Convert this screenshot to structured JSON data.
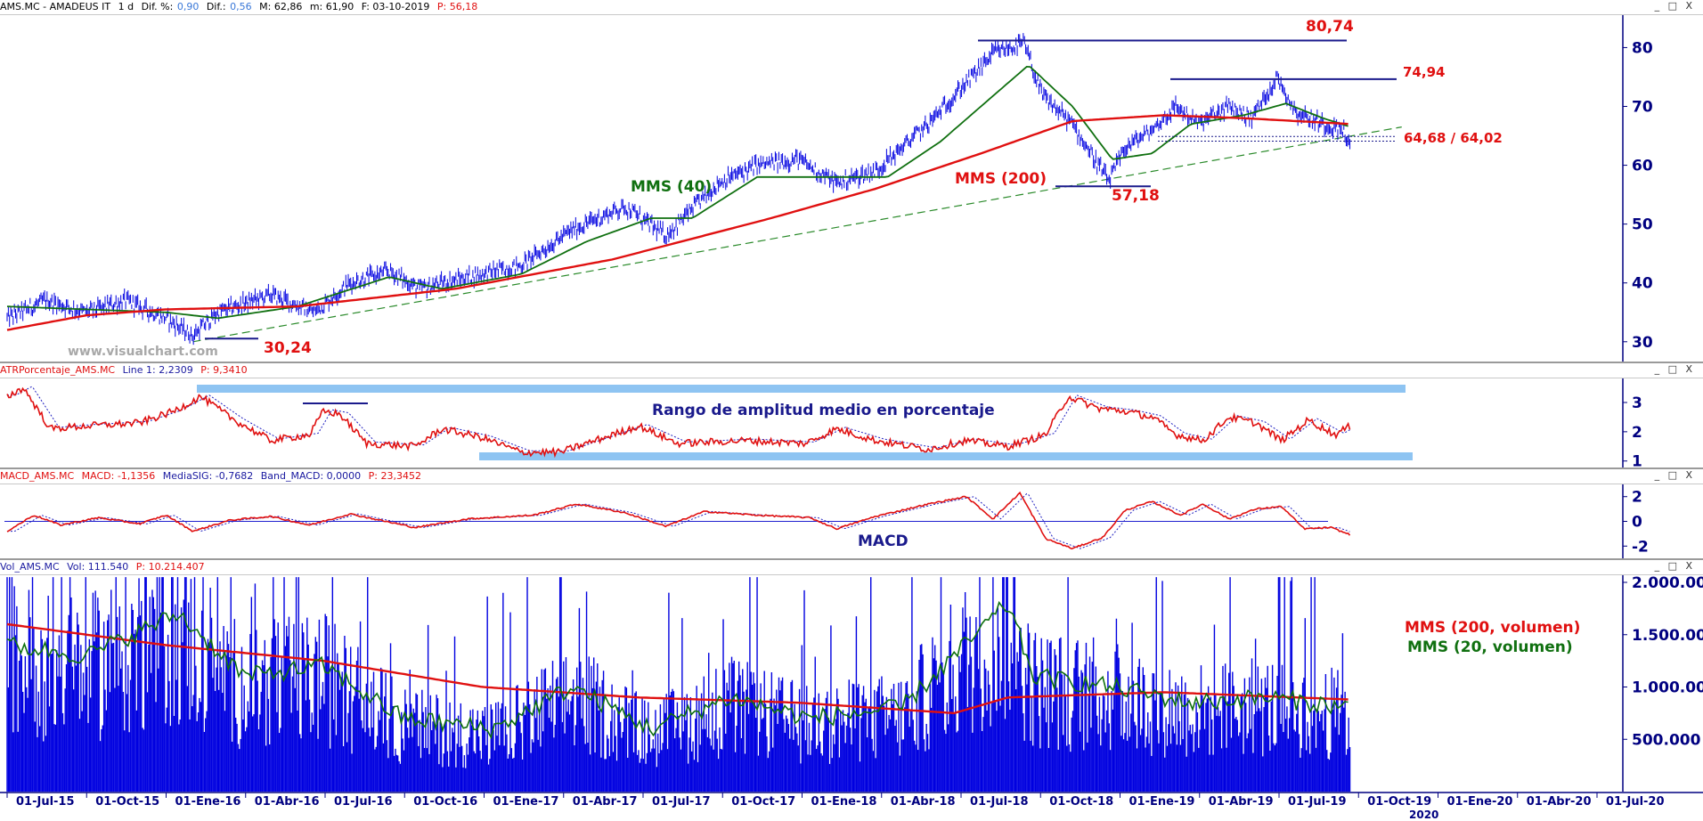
{
  "colors": {
    "price": "#0000e0",
    "mms40": "#107010",
    "mms200": "#e01010",
    "annotation_red": "#e01010",
    "annotation_blue": "#1a1a8c",
    "band": "#8ec4f2",
    "axis": "#000080",
    "trend": "#2a8a2a"
  },
  "header": {
    "symbol": "AMS.MC - AMADEUS IT",
    "timeframe": "1 d",
    "dif_pct_label": "Dif. %:",
    "dif_pct": "0,90",
    "dif_label": "Dif.:",
    "dif": "0,56",
    "max": "M: 62,86",
    "min": "m: 61,90",
    "date": "F: 03-10-2019",
    "p": "P: 56,18"
  },
  "atr_header": {
    "name": "ATRPorcentaje_AMS.MC",
    "line": "Line 1: 2,2309",
    "p": "P: 9,3410"
  },
  "macd_header": {
    "name": "MACD_AMS.MC",
    "macd": "MACD: -1,1356",
    "signal": "MediaSIG: -0,7682",
    "band": "Band_MACD: 0,0000",
    "p": "P: 23,3452"
  },
  "vol_header": {
    "name": "Vol_AMS.MC",
    "vol": "Vol: 111.540",
    "p": "P: 10.214.407"
  },
  "window_controls": "_ □ X",
  "watermark": "www.visualchart.com",
  "annotations": {
    "high": "80,74",
    "second_high": "74,94",
    "support": "64,68 / 64,02",
    "low_2018": "57,18",
    "low_2016": "30,24",
    "mms40": "MMS (40)",
    "mms200": "MMS (200)",
    "atr_title": "Rango de amplitud medio en porcentaje",
    "macd_title": "MACD",
    "vol_mms200": "MMS (200, volumen)",
    "vol_mms20": "MMS (20, volumen)"
  },
  "x_axis": {
    "ticks": [
      "01-Jul-15",
      "01-Oct-15",
      "01-Ene-16",
      "01-Abr-16",
      "01-Jul-16",
      "01-Oct-16",
      "01-Ene-17",
      "01-Abr-17",
      "01-Jul-17",
      "01-Oct-17",
      "01-Ene-18",
      "01-Abr-18",
      "01-Jul-18",
      "01-Oct-18",
      "01-Ene-19",
      "01-Abr-19",
      "01-Jul-19",
      "01-Oct-19",
      "01-Ene-20",
      "01-Abr-20",
      "01-Jul-20"
    ],
    "year_label": "2020"
  },
  "chart_data": [
    {
      "type": "line",
      "name": "price",
      "x_start": "2015-07-01",
      "ylim": [
        28,
        84
      ],
      "y_ticks": [
        "30",
        "40",
        "50",
        "60",
        "70",
        "80"
      ],
      "anchors": [
        [
          "2015-07-01",
          34
        ],
        [
          "2015-08-15",
          37
        ],
        [
          "2015-10-01",
          35
        ],
        [
          "2015-11-15",
          37
        ],
        [
          "2016-01-01",
          34
        ],
        [
          "2016-02-01",
          31
        ],
        [
          "2016-03-01",
          35
        ],
        [
          "2016-05-01",
          38
        ],
        [
          "2016-06-20",
          35
        ],
        [
          "2016-08-01",
          40
        ],
        [
          "2016-09-15",
          42
        ],
        [
          "2016-10-20",
          39
        ],
        [
          "2016-12-15",
          41
        ],
        [
          "2017-02-15",
          43
        ],
        [
          "2017-04-15",
          49
        ],
        [
          "2017-06-15",
          53
        ],
        [
          "2017-08-01",
          48
        ],
        [
          "2017-10-01",
          57
        ],
        [
          "2017-11-15",
          60
        ],
        [
          "2018-01-01",
          61
        ],
        [
          "2018-02-15",
          57
        ],
        [
          "2018-04-01",
          59
        ],
        [
          "2018-06-01",
          67
        ],
        [
          "2018-07-15",
          74
        ],
        [
          "2018-08-15",
          79
        ],
        [
          "2018-09-20",
          80.7
        ],
        [
          "2018-10-10",
          72
        ],
        [
          "2018-11-15",
          67
        ],
        [
          "2018-12-27",
          57.2
        ],
        [
          "2019-01-15",
          63
        ],
        [
          "2019-02-15",
          66
        ],
        [
          "2019-03-15",
          70
        ],
        [
          "2019-04-10",
          67
        ],
        [
          "2019-05-15",
          70
        ],
        [
          "2019-06-10",
          68
        ],
        [
          "2019-07-10",
          74.9
        ],
        [
          "2019-08-01",
          69
        ],
        [
          "2019-09-01",
          67
        ],
        [
          "2019-09-25",
          66
        ],
        [
          "2019-10-03",
          62.4
        ]
      ],
      "series": [
        {
          "name": "MMS (40)",
          "anchors": [
            [
              "2015-07-01",
              36
            ],
            [
              "2015-10-01",
              35.5
            ],
            [
              "2016-01-01",
              35
            ],
            [
              "2016-03-01",
              34
            ],
            [
              "2016-06-01",
              36
            ],
            [
              "2016-09-15",
              41
            ],
            [
              "2016-11-15",
              39
            ],
            [
              "2017-02-15",
              41.5
            ],
            [
              "2017-05-01",
              47
            ],
            [
              "2017-07-15",
              51
            ],
            [
              "2017-09-01",
              51
            ],
            [
              "2017-11-15",
              58
            ],
            [
              "2018-02-01",
              58
            ],
            [
              "2018-04-15",
              58
            ],
            [
              "2018-06-15",
              64
            ],
            [
              "2018-08-01",
              70
            ],
            [
              "2018-09-25",
              77
            ],
            [
              "2018-11-15",
              70
            ],
            [
              "2018-12-31",
              61
            ],
            [
              "2019-02-15",
              62
            ],
            [
              "2019-04-01",
              67
            ],
            [
              "2019-06-01",
              68.5
            ],
            [
              "2019-07-20",
              70.5
            ],
            [
              "2019-09-01",
              68
            ],
            [
              "2019-10-03",
              66.5
            ]
          ]
        },
        {
          "name": "MMS (200)",
          "anchors": [
            [
              "2015-07-01",
              32
            ],
            [
              "2015-10-01",
              34.5
            ],
            [
              "2016-01-01",
              35.5
            ],
            [
              "2016-06-01",
              36
            ],
            [
              "2016-12-01",
              39
            ],
            [
              "2017-06-01",
              44
            ],
            [
              "2017-12-01",
              51
            ],
            [
              "2018-04-01",
              56
            ],
            [
              "2018-08-01",
              62
            ],
            [
              "2018-11-15",
              67.5
            ],
            [
              "2019-03-01",
              68.5
            ],
            [
              "2019-06-01",
              68
            ],
            [
              "2019-10-03",
              67
            ]
          ]
        }
      ]
    },
    {
      "type": "line",
      "name": "ATR %",
      "ylim": [
        0.9,
        3.7
      ],
      "y_ticks": [
        "1",
        "2",
        "3"
      ],
      "anchors": [
        [
          "2015-07-01",
          3.2
        ],
        [
          "2015-07-20",
          3.5
        ],
        [
          "2015-08-20",
          2.1
        ],
        [
          "2015-10-01",
          2.2
        ],
        [
          "2015-12-01",
          2.3
        ],
        [
          "2016-01-10",
          2.7
        ],
        [
          "2016-02-10",
          3.2
        ],
        [
          "2016-03-20",
          2.4
        ],
        [
          "2016-05-01",
          1.7
        ],
        [
          "2016-06-15",
          1.9
        ],
        [
          "2016-07-01",
          2.7
        ],
        [
          "2016-07-20",
          2.6
        ],
        [
          "2016-08-20",
          1.6
        ],
        [
          "2016-10-15",
          1.5
        ],
        [
          "2016-11-15",
          2.1
        ],
        [
          "2017-01-01",
          1.8
        ],
        [
          "2017-02-15",
          1.3
        ],
        [
          "2017-04-01",
          1.3
        ],
        [
          "2017-06-01",
          1.9
        ],
        [
          "2017-07-01",
          2.2
        ],
        [
          "2017-08-15",
          1.6
        ],
        [
          "2017-11-01",
          1.7
        ],
        [
          "2018-01-10",
          1.6
        ],
        [
          "2018-02-15",
          2.1
        ],
        [
          "2018-04-01",
          1.7
        ],
        [
          "2018-06-01",
          1.4
        ],
        [
          "2018-07-15",
          1.7
        ],
        [
          "2018-09-01",
          1.5
        ],
        [
          "2018-10-15",
          1.9
        ],
        [
          "2018-11-10",
          3.2
        ],
        [
          "2018-12-15",
          2.8
        ],
        [
          "2019-01-15",
          2.7
        ],
        [
          "2019-02-15",
          2.5
        ],
        [
          "2019-03-15",
          1.9
        ],
        [
          "2019-04-15",
          1.7
        ],
        [
          "2019-05-15",
          2.5
        ],
        [
          "2019-06-15",
          2.3
        ],
        [
          "2019-07-15",
          1.7
        ],
        [
          "2019-08-15",
          2.4
        ],
        [
          "2019-09-15",
          1.9
        ],
        [
          "2019-10-03",
          2.2
        ]
      ]
    },
    {
      "type": "line",
      "name": "MACD",
      "ylim": [
        -2.7,
        2.7
      ],
      "y_ticks": [
        "2",
        "0",
        "-2"
      ],
      "anchors": [
        [
          "2015-07-01",
          -0.8
        ],
        [
          "2015-08-01",
          0.5
        ],
        [
          "2015-09-01",
          -0.3
        ],
        [
          "2015-10-15",
          0.3
        ],
        [
          "2015-12-01",
          -0.2
        ],
        [
          "2016-01-01",
          0.5
        ],
        [
          "2016-02-01",
          -0.8
        ],
        [
          "2016-03-15",
          0.1
        ],
        [
          "2016-05-01",
          0.4
        ],
        [
          "2016-06-15",
          -0.3
        ],
        [
          "2016-08-01",
          0.6
        ],
        [
          "2016-10-15",
          -0.5
        ],
        [
          "2016-12-15",
          0.2
        ],
        [
          "2017-03-01",
          0.5
        ],
        [
          "2017-04-20",
          1.4
        ],
        [
          "2017-06-15",
          0.7
        ],
        [
          "2017-08-01",
          -0.4
        ],
        [
          "2017-09-15",
          0.8
        ],
        [
          "2017-11-15",
          0.5
        ],
        [
          "2018-01-15",
          0.3
        ],
        [
          "2018-02-15",
          -0.6
        ],
        [
          "2018-04-01",
          0.4
        ],
        [
          "2018-06-01",
          1.4
        ],
        [
          "2018-07-15",
          2.0
        ],
        [
          "2018-08-15",
          0.2
        ],
        [
          "2018-09-15",
          2.3
        ],
        [
          "2018-10-15",
          -1.4
        ],
        [
          "2018-11-15",
          -2.2
        ],
        [
          "2018-12-20",
          -1.3
        ],
        [
          "2019-01-15",
          0.9
        ],
        [
          "2019-02-15",
          1.6
        ],
        [
          "2019-03-20",
          0.5
        ],
        [
          "2019-04-15",
          1.4
        ],
        [
          "2019-05-15",
          0.2
        ],
        [
          "2019-06-15",
          1.0
        ],
        [
          "2019-07-15",
          1.2
        ],
        [
          "2019-08-10",
          -0.6
        ],
        [
          "2019-09-10",
          -0.5
        ],
        [
          "2019-10-03",
          -1.1
        ]
      ]
    },
    {
      "type": "bar",
      "name": "Volumen",
      "ylim": [
        0,
        2000000
      ],
      "y_ticks": [
        "2.000.000",
        "1.500.000",
        "1.000.000",
        "500.000"
      ],
      "series": [
        {
          "name": "MMS (200, volumen)",
          "anchors": [
            [
              "2015-07-01",
              1600000
            ],
            [
              "2016-01-01",
              1400000
            ],
            [
              "2016-07-01",
              1250000
            ],
            [
              "2017-01-01",
              1000000
            ],
            [
              "2017-07-01",
              900000
            ],
            [
              "2018-01-01",
              850000
            ],
            [
              "2018-07-01",
              750000
            ],
            [
              "2018-09-01",
              900000
            ],
            [
              "2019-03-01",
              950000
            ],
            [
              "2019-10-03",
              880000
            ]
          ]
        },
        {
          "name": "MMS (20, volumen)",
          "anchors": [
            [
              "2015-07-01",
              1400000
            ],
            [
              "2015-10-01",
              1300000
            ],
            [
              "2016-01-15",
              1700000
            ],
            [
              "2016-04-01",
              1100000
            ],
            [
              "2016-07-01",
              1200000
            ],
            [
              "2016-10-01",
              700000
            ],
            [
              "2017-01-15",
              600000
            ],
            [
              "2017-04-15",
              1000000
            ],
            [
              "2017-07-15",
              600000
            ],
            [
              "2017-10-15",
              900000
            ],
            [
              "2018-01-15",
              700000
            ],
            [
              "2018-05-01",
              800000
            ],
            [
              "2018-09-01",
              1800000
            ],
            [
              "2018-10-01",
              1100000
            ],
            [
              "2019-01-01",
              1000000
            ],
            [
              "2019-04-01",
              850000
            ],
            [
              "2019-07-01",
              900000
            ],
            [
              "2019-10-03",
              800000
            ]
          ]
        }
      ]
    }
  ]
}
